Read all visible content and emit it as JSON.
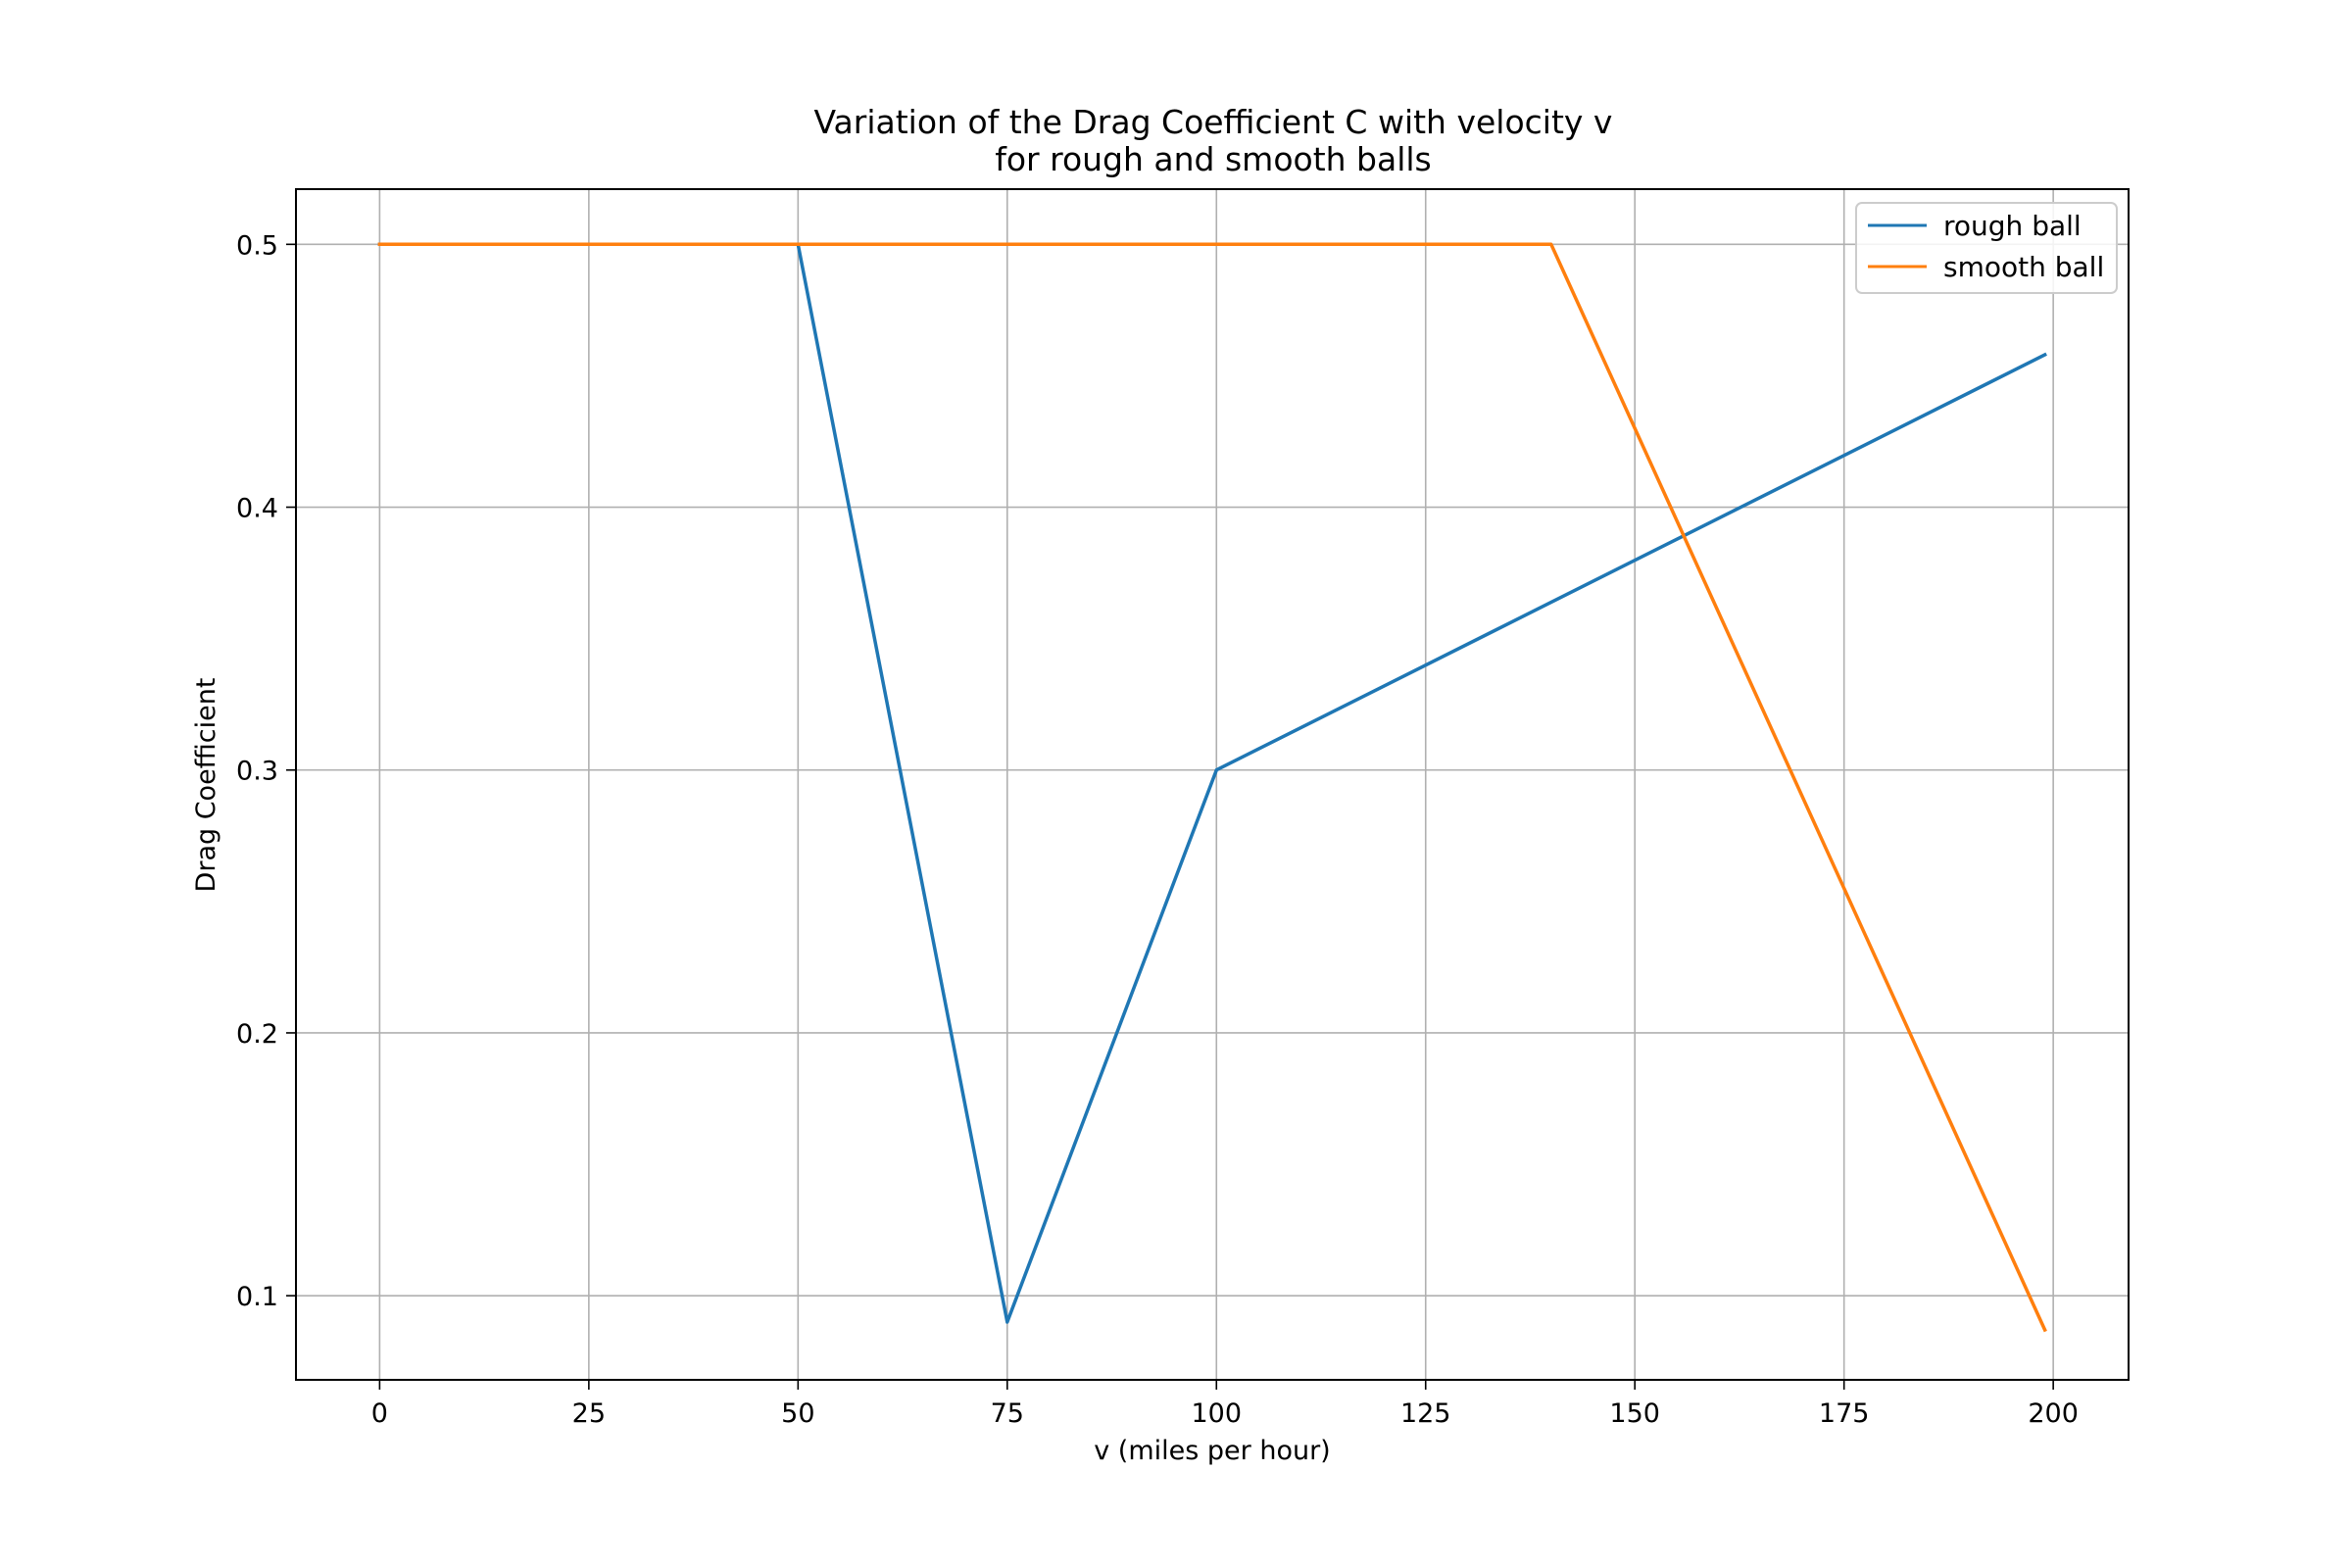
{
  "chart_data": {
    "type": "line",
    "title_line1": "Variation of the Drag Coefficient C with velocity v",
    "title_line2": "for rough and smooth balls",
    "xlabel": "v (miles per hour)",
    "ylabel": "Drag Coefficient",
    "xlim": [
      -10,
      209
    ],
    "ylim": [
      0.068,
      0.521
    ],
    "xticks": [
      0,
      25,
      50,
      75,
      100,
      125,
      150,
      175,
      200
    ],
    "yticks": [
      0.1,
      0.2,
      0.3,
      0.4,
      0.5
    ],
    "xtick_labels": [
      "0",
      "25",
      "50",
      "75",
      "100",
      "125",
      "150",
      "175",
      "200"
    ],
    "ytick_labels": [
      "0.1",
      "0.2",
      "0.3",
      "0.4",
      "0.5"
    ],
    "grid": true,
    "legend_position": "top-right",
    "series": [
      {
        "name": "rough ball",
        "color": "#1f77b4",
        "points": [
          [
            0,
            0.5
          ],
          [
            50,
            0.5
          ],
          [
            75,
            0.09
          ],
          [
            100,
            0.3
          ],
          [
            199,
            0.458
          ]
        ]
      },
      {
        "name": "smooth ball",
        "color": "#ff7f0e",
        "points": [
          [
            0,
            0.5
          ],
          [
            140,
            0.5
          ],
          [
            199,
            0.087
          ]
        ]
      }
    ]
  }
}
